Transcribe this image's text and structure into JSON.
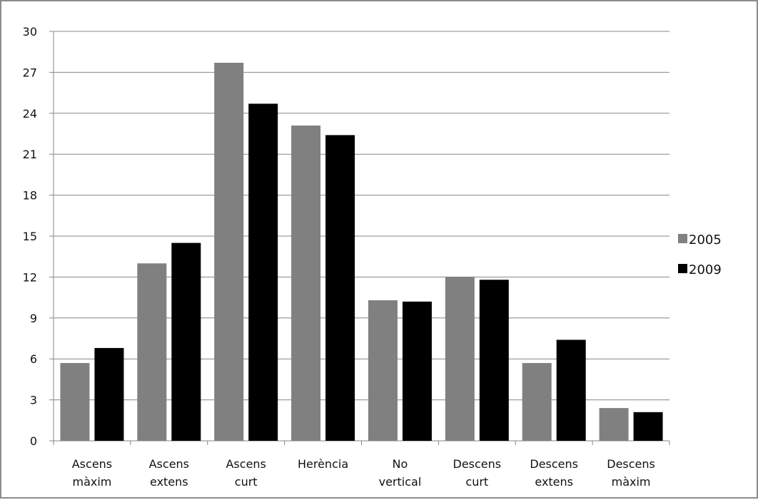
{
  "chart_data": {
    "type": "bar",
    "categories": [
      [
        "Ascens",
        "màxim"
      ],
      [
        "Ascens",
        "extens"
      ],
      [
        "Ascens",
        "curt"
      ],
      [
        "Herència"
      ],
      [
        "No",
        "vertical"
      ],
      [
        "Descens",
        "curt"
      ],
      [
        "Descens",
        "extens"
      ],
      [
        "Descens",
        "màxim"
      ]
    ],
    "series": [
      {
        "name": "2005",
        "color": "#808080",
        "values": [
          5.7,
          13.0,
          27.7,
          23.1,
          10.3,
          12.0,
          5.7,
          2.4
        ]
      },
      {
        "name": "2009",
        "color": "#000000",
        "values": [
          6.8,
          14.5,
          24.7,
          22.4,
          10.2,
          11.8,
          7.4,
          2.1
        ]
      }
    ],
    "ylim": [
      0,
      30
    ],
    "yticks": [
      0,
      3,
      6,
      9,
      12,
      15,
      18,
      21,
      24,
      27,
      30
    ],
    "grid": true,
    "legend_position": "right",
    "title": "",
    "xlabel": "",
    "ylabel": ""
  }
}
